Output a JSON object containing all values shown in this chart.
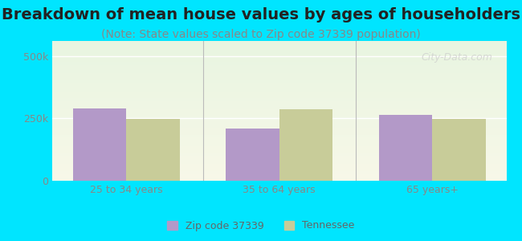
{
  "title": "Breakdown of mean house values by ages of householders",
  "subtitle": "(Note: State values scaled to Zip code 37339 population)",
  "categories": [
    "25 to 34 years",
    "35 to 64 years",
    "65 years+"
  ],
  "zip_values": [
    290000,
    210000,
    265000
  ],
  "state_values": [
    248000,
    285000,
    248000
  ],
  "zip_color": "#b399c8",
  "state_color": "#c8cc99",
  "background_outer": "#00e5ff",
  "ylim": [
    0,
    560000
  ],
  "yticks": [
    0,
    250000,
    500000
  ],
  "ytick_labels": [
    "0",
    "250k",
    "500k"
  ],
  "bar_width": 0.35,
  "legend_labels": [
    "Zip code 37339",
    "Tennessee"
  ],
  "watermark": "City-Data.com",
  "title_fontsize": 14,
  "subtitle_fontsize": 10,
  "axis_label_fontsize": 9,
  "tick_fontsize": 9
}
